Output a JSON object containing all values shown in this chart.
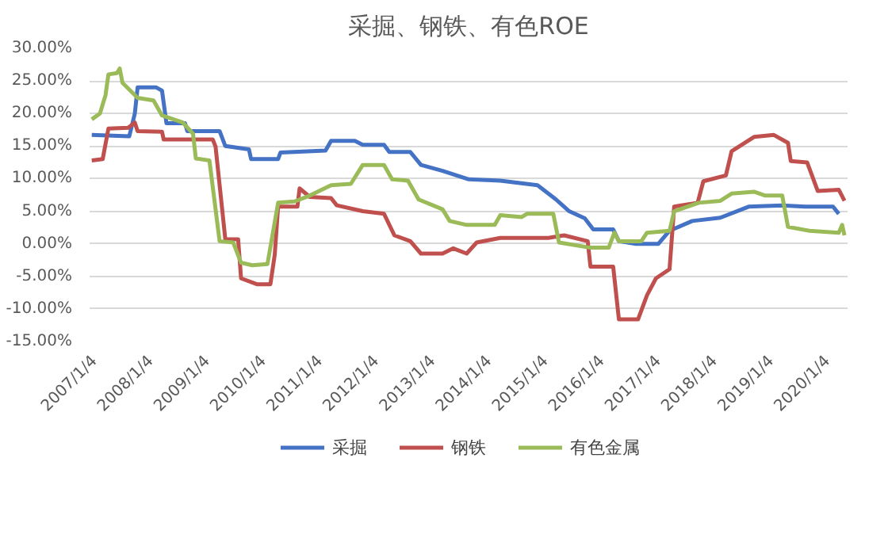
{
  "chart_data": {
    "type": "line",
    "title": "采掘、钢铁、有色ROE",
    "xlim": [
      "2006-12-01",
      "2020-05-10"
    ],
    "xticks": [
      {
        "value": "2007-01-04",
        "label": "2007/1/4"
      },
      {
        "value": "2008-01-04",
        "label": "2008/1/4"
      },
      {
        "value": "2009-01-04",
        "label": "2009/1/4"
      },
      {
        "value": "2010-01-04",
        "label": "2010/1/4"
      },
      {
        "value": "2011-01-04",
        "label": "2011/1/4"
      },
      {
        "value": "2012-01-04",
        "label": "2012/1/4"
      },
      {
        "value": "2013-01-04",
        "label": "2013/1/4"
      },
      {
        "value": "2014-01-04",
        "label": "2014/1/4"
      },
      {
        "value": "2015-01-04",
        "label": "2015/1/4"
      },
      {
        "value": "2016-01-04",
        "label": "2016/1/4"
      },
      {
        "value": "2017-01-04",
        "label": "2017/1/4"
      },
      {
        "value": "2018-01-04",
        "label": "2018/1/4"
      },
      {
        "value": "2019-01-04",
        "label": "2019/1/4"
      },
      {
        "value": "2020-01-04",
        "label": "2020/1/4"
      }
    ],
    "ylim": [
      -15,
      30
    ],
    "yticks": [
      {
        "value": -15,
        "label": "-15.00%"
      },
      {
        "value": -10,
        "label": "-10.00%"
      },
      {
        "value": -5,
        "label": "-5.00%"
      },
      {
        "value": 0,
        "label": "0.00%"
      },
      {
        "value": 5,
        "label": "5.00%"
      },
      {
        "value": 10,
        "label": "10.00%"
      },
      {
        "value": 15,
        "label": "15.00%"
      },
      {
        "value": 20,
        "label": "20.00%"
      },
      {
        "value": 25,
        "label": "25.00%"
      },
      {
        "value": 30,
        "label": "30.00%"
      }
    ],
    "grid": "y",
    "legend": "bottom",
    "series": [
      {
        "name": "采掘",
        "color": "#4472c4",
        "x": [
          "2006-12-15",
          "2007-08-15",
          "2007-09-20",
          "2007-10-08",
          "2008-02-06",
          "2008-03-14",
          "2008-04-12",
          "2008-08-10",
          "2008-08-25",
          "2009-03-22",
          "2009-04-28",
          "2009-09-28",
          "2009-10-12",
          "2010-04-05",
          "2010-04-20",
          "2011-02-06",
          "2011-03-14",
          "2011-08-15",
          "2011-10-05",
          "2012-02-20",
          "2012-03-25",
          "2012-08-08",
          "2012-10-16",
          "2013-03-05",
          "2013-08-22",
          "2014-03-14",
          "2014-11-10",
          "2015-03-10",
          "2015-06-03",
          "2015-09-12",
          "2015-11-06",
          "2016-03-14",
          "2016-04-20",
          "2016-08-08",
          "2017-01-01",
          "2017-03-14",
          "2017-08-08",
          "2018-02-06",
          "2018-08-08",
          "2019-03-14",
          "2019-08-08",
          "2020-02-06",
          "2020-03-14"
        ],
        "values": [
          16.7,
          16.5,
          20.0,
          24.0,
          24.0,
          23.5,
          18.5,
          18.5,
          17.3,
          17.3,
          15.0,
          14.5,
          13.0,
          13.0,
          14.0,
          14.3,
          15.8,
          15.8,
          15.2,
          15.2,
          14.1,
          14.1,
          12.1,
          11.2,
          9.9,
          9.7,
          9.0,
          6.8,
          5.0,
          3.9,
          2.2,
          2.2,
          0.4,
          0.0,
          0.0,
          2.0,
          3.5,
          4.0,
          5.7,
          5.9,
          5.7,
          5.7,
          4.6
        ]
      },
      {
        "name": "钢铁",
        "color": "#c0504d",
        "x": [
          "2006-12-15",
          "2007-02-24",
          "2007-04-02",
          "2007-08-08",
          "2007-09-20",
          "2007-10-08",
          "2008-03-14",
          "2008-03-25",
          "2009-02-06",
          "2009-02-24",
          "2009-04-28",
          "2009-07-20",
          "2009-08-08",
          "2009-11-18",
          "2010-02-14",
          "2010-03-14",
          "2010-04-05",
          "2010-08-08",
          "2010-08-22",
          "2010-10-27",
          "2011-03-14",
          "2011-04-20",
          "2011-10-05",
          "2012-02-20",
          "2012-04-27",
          "2012-08-08",
          "2012-10-16",
          "2013-03-05",
          "2013-05-12",
          "2013-08-08",
          "2013-10-12",
          "2014-03-14",
          "2015-01-19",
          "2015-05-01",
          "2015-10-01",
          "2015-10-19",
          "2016-03-14",
          "2016-04-20",
          "2016-08-22",
          "2016-10-19",
          "2016-12-16",
          "2017-03-14",
          "2017-04-13",
          "2017-09-12",
          "2017-10-19",
          "2018-03-14",
          "2018-04-20",
          "2018-09-12",
          "2019-01-19",
          "2019-04-20",
          "2019-05-08",
          "2019-08-22",
          "2019-10-30",
          "2020-03-14",
          "2020-04-20"
        ],
        "values": [
          12.8,
          13.0,
          17.7,
          17.8,
          18.6,
          17.3,
          17.2,
          16.0,
          16.0,
          14.9,
          0.7,
          0.7,
          -5.3,
          -6.2,
          -6.2,
          -1.7,
          5.7,
          5.7,
          8.5,
          7.2,
          7.0,
          5.9,
          5.0,
          4.6,
          1.3,
          0.4,
          -1.5,
          -1.5,
          -0.7,
          -1.5,
          0.2,
          0.9,
          0.9,
          1.3,
          0.4,
          -3.5,
          -3.5,
          -11.6,
          -11.6,
          -7.9,
          -5.3,
          -3.9,
          5.7,
          6.3,
          9.6,
          10.5,
          14.2,
          16.4,
          16.7,
          15.5,
          12.7,
          12.5,
          8.1,
          8.3,
          6.6
        ]
      },
      {
        "name": "有色金属",
        "color": "#9bbb59",
        "x": [
          "2006-12-15",
          "2007-02-06",
          "2007-03-14",
          "2007-04-02",
          "2007-05-27",
          "2007-06-14",
          "2007-07-02",
          "2007-10-08",
          "2008-01-19",
          "2008-03-14",
          "2008-07-27",
          "2008-10-01",
          "2008-10-19",
          "2009-01-15",
          "2009-03-22",
          "2009-06-18",
          "2009-08-08",
          "2009-10-19",
          "2010-01-26",
          "2010-04-05",
          "2010-07-20",
          "2010-10-27",
          "2011-03-14",
          "2011-07-20",
          "2011-10-05",
          "2012-02-20",
          "2012-04-12",
          "2012-07-24",
          "2012-10-01",
          "2013-03-05",
          "2013-04-20",
          "2013-08-08",
          "2014-02-06",
          "2014-03-14",
          "2014-07-31",
          "2014-09-02",
          "2015-02-20",
          "2015-03-29",
          "2015-10-19",
          "2016-02-14",
          "2016-03-22",
          "2016-04-20",
          "2016-09-12",
          "2016-10-19",
          "2017-03-14",
          "2017-04-13",
          "2017-09-20",
          "2018-02-06",
          "2018-04-20",
          "2018-09-12",
          "2018-11-24",
          "2019-03-14",
          "2019-04-20",
          "2019-09-06",
          "2020-03-14",
          "2020-04-05",
          "2020-04-20"
        ],
        "values": [
          19.1,
          20.0,
          22.8,
          26.0,
          26.2,
          26.9,
          24.7,
          22.4,
          22.0,
          19.7,
          18.6,
          16.9,
          13.1,
          12.8,
          0.4,
          0.2,
          -2.9,
          -3.3,
          -3.1,
          6.3,
          6.5,
          7.4,
          9.0,
          9.2,
          12.1,
          12.1,
          9.9,
          9.7,
          6.8,
          5.3,
          3.5,
          2.9,
          2.9,
          4.4,
          4.1,
          4.6,
          4.6,
          0.2,
          -0.6,
          -0.6,
          1.7,
          0.4,
          0.4,
          1.7,
          2.0,
          5.0,
          6.3,
          6.6,
          7.7,
          8.0,
          7.4,
          7.4,
          2.6,
          2.0,
          1.7,
          2.9,
          1.3
        ]
      }
    ]
  }
}
